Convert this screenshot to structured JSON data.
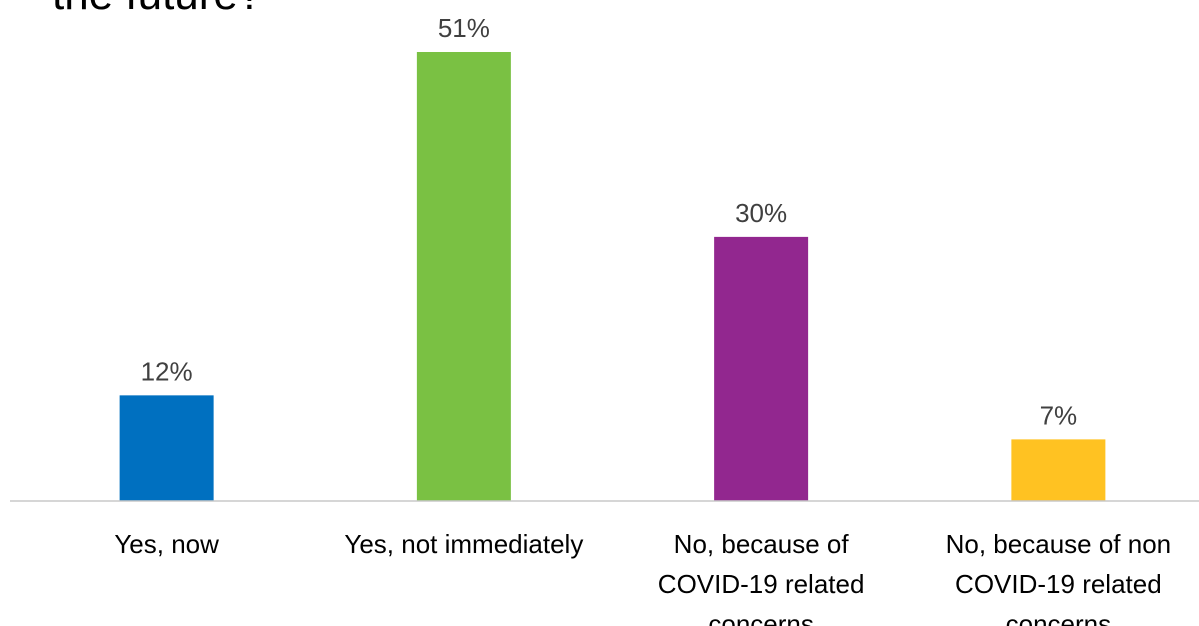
{
  "chart_data": {
    "type": "bar",
    "title": "the future?",
    "categories": [
      [
        "Yes, now"
      ],
      [
        "Yes, not immediately"
      ],
      [
        "No, because of",
        "COVID-19 related",
        "concerns"
      ],
      [
        "No, because of non",
        "COVID-19 related",
        "concerns"
      ]
    ],
    "values": [
      12,
      51,
      30,
      7
    ],
    "value_labels": [
      "12%",
      "51%",
      "30%",
      "7%"
    ],
    "colors": [
      "#0070C0",
      "#7AC143",
      "#92278F",
      "#FFC222"
    ],
    "unit": "%",
    "ylim": [
      0,
      51
    ],
    "grid": false,
    "legend": "none"
  }
}
